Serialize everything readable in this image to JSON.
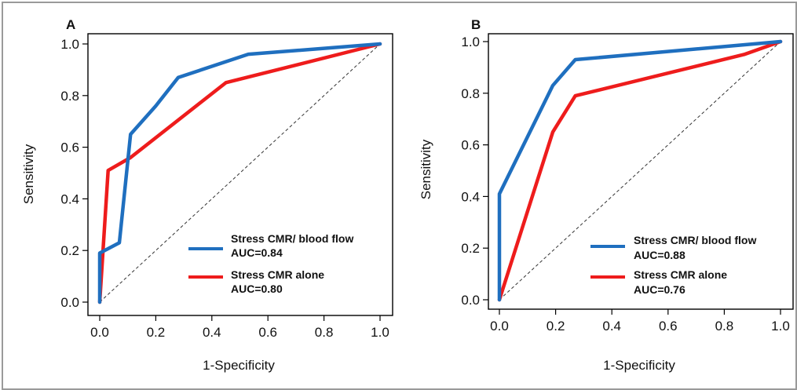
{
  "chart_data": [
    {
      "type": "line",
      "panel_label": "A",
      "xlabel": "1-Specificity",
      "ylabel": "Sensitivity",
      "xlim": [
        0,
        1
      ],
      "ylim": [
        0,
        1
      ],
      "xticks": [
        "0.0",
        "0.2",
        "0.4",
        "0.6",
        "0.8",
        "1.0"
      ],
      "yticks": [
        "0.0",
        "0.2",
        "0.4",
        "0.6",
        "0.8",
        "1.0"
      ],
      "reference_line": "diagonal dashed",
      "legend_position": "bottom-right",
      "series": [
        {
          "name": "Stress CMR/ blood flow",
          "auc_label": "AUC=0.84",
          "color": "#1f6fbf",
          "points": [
            [
              0,
              0
            ],
            [
              0,
              0.19
            ],
            [
              0.07,
              0.23
            ],
            [
              0.11,
              0.65
            ],
            [
              0.2,
              0.76
            ],
            [
              0.28,
              0.87
            ],
            [
              0.53,
              0.96
            ],
            [
              1,
              1
            ]
          ]
        },
        {
          "name": "Stress CMR alone",
          "auc_label": "AUC=0.80",
          "color": "#ee1c1c",
          "points": [
            [
              0,
              0
            ],
            [
              0.03,
              0.51
            ],
            [
              0.11,
              0.56
            ],
            [
              0.45,
              0.85
            ],
            [
              1,
              1
            ]
          ]
        }
      ]
    },
    {
      "type": "line",
      "panel_label": "B",
      "xlabel": "1-Specificity",
      "ylabel": "Sensitivity",
      "xlim": [
        0,
        1
      ],
      "ylim": [
        0,
        1
      ],
      "xticks": [
        "0.0",
        "0.2",
        "0.4",
        "0.6",
        "0.8",
        "1.0"
      ],
      "yticks": [
        "0.0",
        "0.2",
        "0.4",
        "0.6",
        "0.8",
        "1.0"
      ],
      "reference_line": "diagonal dashed",
      "legend_position": "bottom-right",
      "series": [
        {
          "name": "Stress CMR/ blood flow",
          "auc_label": "AUC=0.88",
          "color": "#1f6fbf",
          "points": [
            [
              0,
              0
            ],
            [
              0,
              0.41
            ],
            [
              0.19,
              0.83
            ],
            [
              0.27,
              0.93
            ],
            [
              1,
              1
            ]
          ]
        },
        {
          "name": "Stress CMR alone",
          "auc_label": "AUC=0.76",
          "color": "#ee1c1c",
          "points": [
            [
              0,
              0
            ],
            [
              0.19,
              0.65
            ],
            [
              0.27,
              0.79
            ],
            [
              0.87,
              0.95
            ],
            [
              1,
              1
            ]
          ]
        }
      ]
    }
  ]
}
